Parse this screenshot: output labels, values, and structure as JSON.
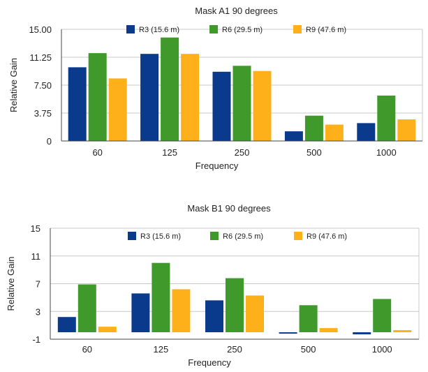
{
  "chart_data": [
    {
      "type": "bar",
      "title": "Mask A1 90 degrees",
      "xlabel": "Frequency",
      "ylabel": "Relative Gain",
      "categories": [
        "60",
        "125",
        "250",
        "500",
        "1000"
      ],
      "ylim": [
        0,
        15
      ],
      "yticks": [
        "0",
        "3.75",
        "7.50",
        "11.25",
        "15.00"
      ],
      "ytick_values": [
        0,
        3.75,
        7.5,
        11.25,
        15
      ],
      "grid": true,
      "legend_position": "top",
      "series": [
        {
          "name": "R3 (15.6 m)",
          "color": "#0a3a8c",
          "values": [
            9.9,
            11.7,
            9.3,
            1.3,
            2.4
          ]
        },
        {
          "name": "R6 (29.5 m)",
          "color": "#3f9a2b",
          "values": [
            11.8,
            13.9,
            10.1,
            3.4,
            6.1
          ]
        },
        {
          "name": "R9 (47.6 m)",
          "color": "#fdb01a",
          "values": [
            8.4,
            11.7,
            9.4,
            2.2,
            2.9
          ]
        }
      ]
    },
    {
      "type": "bar",
      "title": "Mask B1 90 degrees",
      "xlabel": "Frequency",
      "ylabel": "Relative Gain",
      "categories": [
        "60",
        "125",
        "250",
        "500",
        "1000"
      ],
      "ylim": [
        -1,
        15
      ],
      "yticks": [
        "-1",
        "3",
        "7",
        "11",
        "15"
      ],
      "ytick_values": [
        -1,
        3,
        7,
        11,
        15
      ],
      "grid": true,
      "legend_position": "top",
      "series": [
        {
          "name": "R3 (15.6 m)",
          "color": "#0a3a8c",
          "values": [
            2.2,
            5.6,
            4.6,
            -0.2,
            -0.3
          ]
        },
        {
          "name": "R6 (29.5 m)",
          "color": "#3f9a2b",
          "values": [
            6.9,
            10.0,
            7.8,
            3.9,
            4.8
          ]
        },
        {
          "name": "R9 (47.6 m)",
          "color": "#fdb01a",
          "values": [
            0.8,
            6.2,
            5.3,
            0.6,
            0.3
          ]
        }
      ]
    }
  ]
}
